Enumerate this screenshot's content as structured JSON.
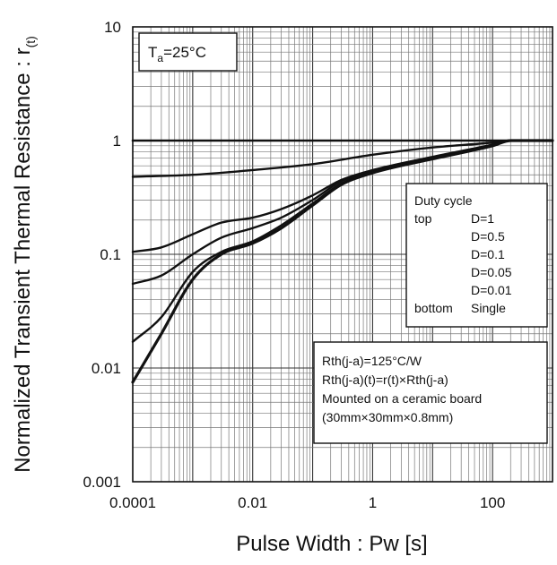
{
  "chart_data": {
    "type": "line",
    "title": "",
    "xlabel": "Pulse Width : Pw [s]",
    "ylabel": "Normalized Transient Thermal Resistance : r",
    "ylabel_sub": "(t)",
    "xscale": "log",
    "yscale": "log",
    "xlim": [
      0.0001,
      1000
    ],
    "ylim": [
      0.001,
      10
    ],
    "grid": true,
    "x_tick_labels": [
      "0.0001",
      "0.01",
      "1",
      "100"
    ],
    "y_tick_labels": [
      "0.001",
      "0.01",
      "0.1",
      "1",
      "10"
    ],
    "condition": {
      "prefix": "T",
      "sub": "a",
      "suffix": "=25°C"
    },
    "legend": {
      "placement": "right",
      "title": "Duty cycle",
      "rows": [
        {
          "left": "top",
          "right": "D=1"
        },
        {
          "left": "",
          "right": "D=0.5"
        },
        {
          "left": "",
          "right": "D=0.1"
        },
        {
          "left": "",
          "right": "D=0.05"
        },
        {
          "left": "",
          "right": "D=0.01"
        },
        {
          "left": "bottom",
          "right": "Single"
        }
      ]
    },
    "annotation": [
      "Rth(j-a)=125°C/W",
      "Rth(j-a)(t)=r(t)×Rth(j-a)",
      "Mounted on a ceramic board",
      "(30mm×30mm×0.8mm)"
    ],
    "series": [
      {
        "x": [
          0.0001,
          1000
        ],
        "y": [
          1,
          1
        ]
      },
      {
        "x": [
          0.0001,
          0.001,
          0.01,
          0.1,
          1,
          10,
          100,
          200,
          1000
        ],
        "y": [
          0.48,
          0.5,
          0.55,
          0.62,
          0.75,
          0.87,
          0.96,
          1,
          1
        ]
      },
      {
        "x": [
          0.0001,
          0.0003,
          0.001,
          0.003,
          0.01,
          0.03,
          0.1,
          0.3,
          1,
          10,
          100,
          200,
          1000
        ],
        "y": [
          0.105,
          0.115,
          0.15,
          0.19,
          0.21,
          0.25,
          0.33,
          0.45,
          0.55,
          0.72,
          0.92,
          1,
          1
        ]
      },
      {
        "x": [
          0.0001,
          0.0003,
          0.001,
          0.003,
          0.01,
          0.03,
          0.1,
          0.3,
          1,
          10,
          100,
          200,
          1000
        ],
        "y": [
          0.055,
          0.065,
          0.1,
          0.14,
          0.17,
          0.21,
          0.3,
          0.44,
          0.54,
          0.7,
          0.91,
          1,
          1
        ]
      },
      {
        "x": [
          0.0001,
          0.0003,
          0.001,
          0.003,
          0.01,
          0.03,
          0.1,
          0.3,
          1,
          10,
          100,
          200,
          1000
        ],
        "y": [
          0.017,
          0.028,
          0.07,
          0.105,
          0.13,
          0.18,
          0.28,
          0.42,
          0.53,
          0.7,
          0.9,
          1,
          1
        ]
      },
      {
        "x": [
          0.0001,
          0.0003,
          0.001,
          0.003,
          0.01,
          0.03,
          0.1,
          0.3,
          1,
          10,
          100,
          200,
          1000
        ],
        "y": [
          0.0075,
          0.02,
          0.06,
          0.1,
          0.125,
          0.17,
          0.27,
          0.41,
          0.52,
          0.69,
          0.9,
          1,
          1
        ]
      }
    ]
  }
}
